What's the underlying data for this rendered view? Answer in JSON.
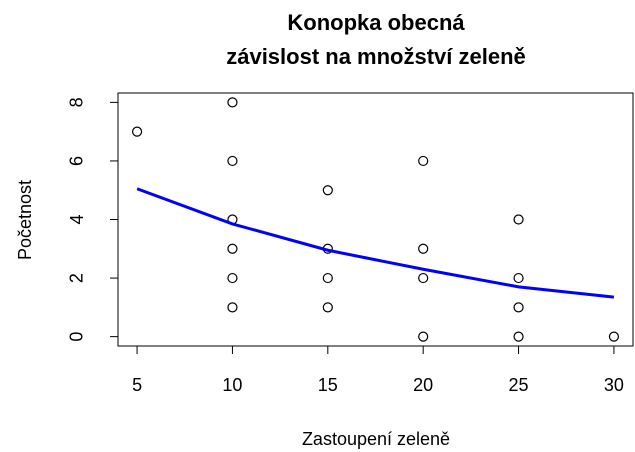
{
  "chart_data": {
    "type": "scatter",
    "title": [
      "Konopka obecná",
      "závislost na množství zeleně"
    ],
    "x_label": "Zastoupení zeleně",
    "y_label": "Početnost",
    "xlim": [
      4,
      31
    ],
    "ylim": [
      -0.32,
      8.32
    ],
    "xticks": [
      5,
      10,
      15,
      20,
      25,
      30
    ],
    "yticks": [
      0,
      2,
      4,
      6,
      8
    ],
    "series": [
      {
        "type": "scatter",
        "color": "#000000",
        "x": [
          5,
          10,
          10,
          10,
          10,
          10,
          10,
          15,
          15,
          15,
          15,
          20,
          20,
          20,
          20,
          25,
          25,
          25,
          25,
          30
        ],
        "values": [
          7,
          8,
          6,
          4,
          3,
          2,
          1,
          5,
          3,
          2,
          1,
          6,
          3,
          2,
          0,
          4,
          2,
          1,
          0,
          0
        ]
      },
      {
        "type": "line",
        "color": "#0000ff",
        "x": [
          5,
          10,
          15,
          20,
          25,
          30
        ],
        "values": [
          5.05,
          3.85,
          2.95,
          2.3,
          1.7,
          1.35
        ]
      }
    ]
  }
}
